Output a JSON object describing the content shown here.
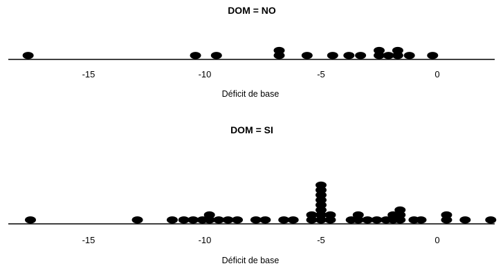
{
  "chart_data": [
    {
      "type": "dotplot",
      "title": "DOM = NO",
      "xlabel": "Déficit de base",
      "xlim": [
        -18,
        2.8
      ],
      "ticks": [
        {
          "value": -15,
          "label": "-15"
        },
        {
          "value": -10,
          "label": "-10"
        },
        {
          "value": -5,
          "label": "-5"
        },
        {
          "value": 0,
          "label": "0"
        }
      ],
      "stacks": [
        {
          "x": -17.6,
          "count": 1
        },
        {
          "x": -10.4,
          "count": 1
        },
        {
          "x": -9.5,
          "count": 1
        },
        {
          "x": -6.8,
          "count": 2
        },
        {
          "x": -5.6,
          "count": 1
        },
        {
          "x": -4.5,
          "count": 1
        },
        {
          "x": -3.8,
          "count": 1
        },
        {
          "x": -3.3,
          "count": 1
        },
        {
          "x": -2.5,
          "count": 2
        },
        {
          "x": -2.1,
          "count": 1
        },
        {
          "x": -1.7,
          "count": 2
        },
        {
          "x": -1.2,
          "count": 1
        },
        {
          "x": -0.2,
          "count": 1
        }
      ]
    },
    {
      "type": "dotplot",
      "title": "DOM = SI",
      "xlabel": "Déficit de base",
      "xlim": [
        -18,
        2.8
      ],
      "ticks": [
        {
          "value": -15,
          "label": "-15"
        },
        {
          "value": -10,
          "label": "-10"
        },
        {
          "value": -5,
          "label": "-5"
        },
        {
          "value": 0,
          "label": "0"
        }
      ],
      "stacks": [
        {
          "x": -17.5,
          "count": 1
        },
        {
          "x": -12.9,
          "count": 1
        },
        {
          "x": -11.4,
          "count": 1
        },
        {
          "x": -10.9,
          "count": 1
        },
        {
          "x": -10.5,
          "count": 1
        },
        {
          "x": -10.1,
          "count": 1
        },
        {
          "x": -9.8,
          "count": 2
        },
        {
          "x": -9.4,
          "count": 1
        },
        {
          "x": -9.0,
          "count": 1
        },
        {
          "x": -8.6,
          "count": 1
        },
        {
          "x": -7.8,
          "count": 1
        },
        {
          "x": -7.4,
          "count": 1
        },
        {
          "x": -6.6,
          "count": 1
        },
        {
          "x": -6.2,
          "count": 1
        },
        {
          "x": -5.4,
          "count": 2
        },
        {
          "x": -5.0,
          "count": 8
        },
        {
          "x": -4.6,
          "count": 2
        },
        {
          "x": -3.7,
          "count": 1
        },
        {
          "x": -3.4,
          "count": 2
        },
        {
          "x": -3.0,
          "count": 1
        },
        {
          "x": -2.6,
          "count": 1
        },
        {
          "x": -2.2,
          "count": 1
        },
        {
          "x": -1.9,
          "count": 2
        },
        {
          "x": -1.6,
          "count": 3
        },
        {
          "x": -1.0,
          "count": 1
        },
        {
          "x": -0.7,
          "count": 1
        },
        {
          "x": 0.4,
          "count": 2
        },
        {
          "x": 1.2,
          "count": 1
        },
        {
          "x": 2.3,
          "count": 1
        }
      ]
    }
  ]
}
